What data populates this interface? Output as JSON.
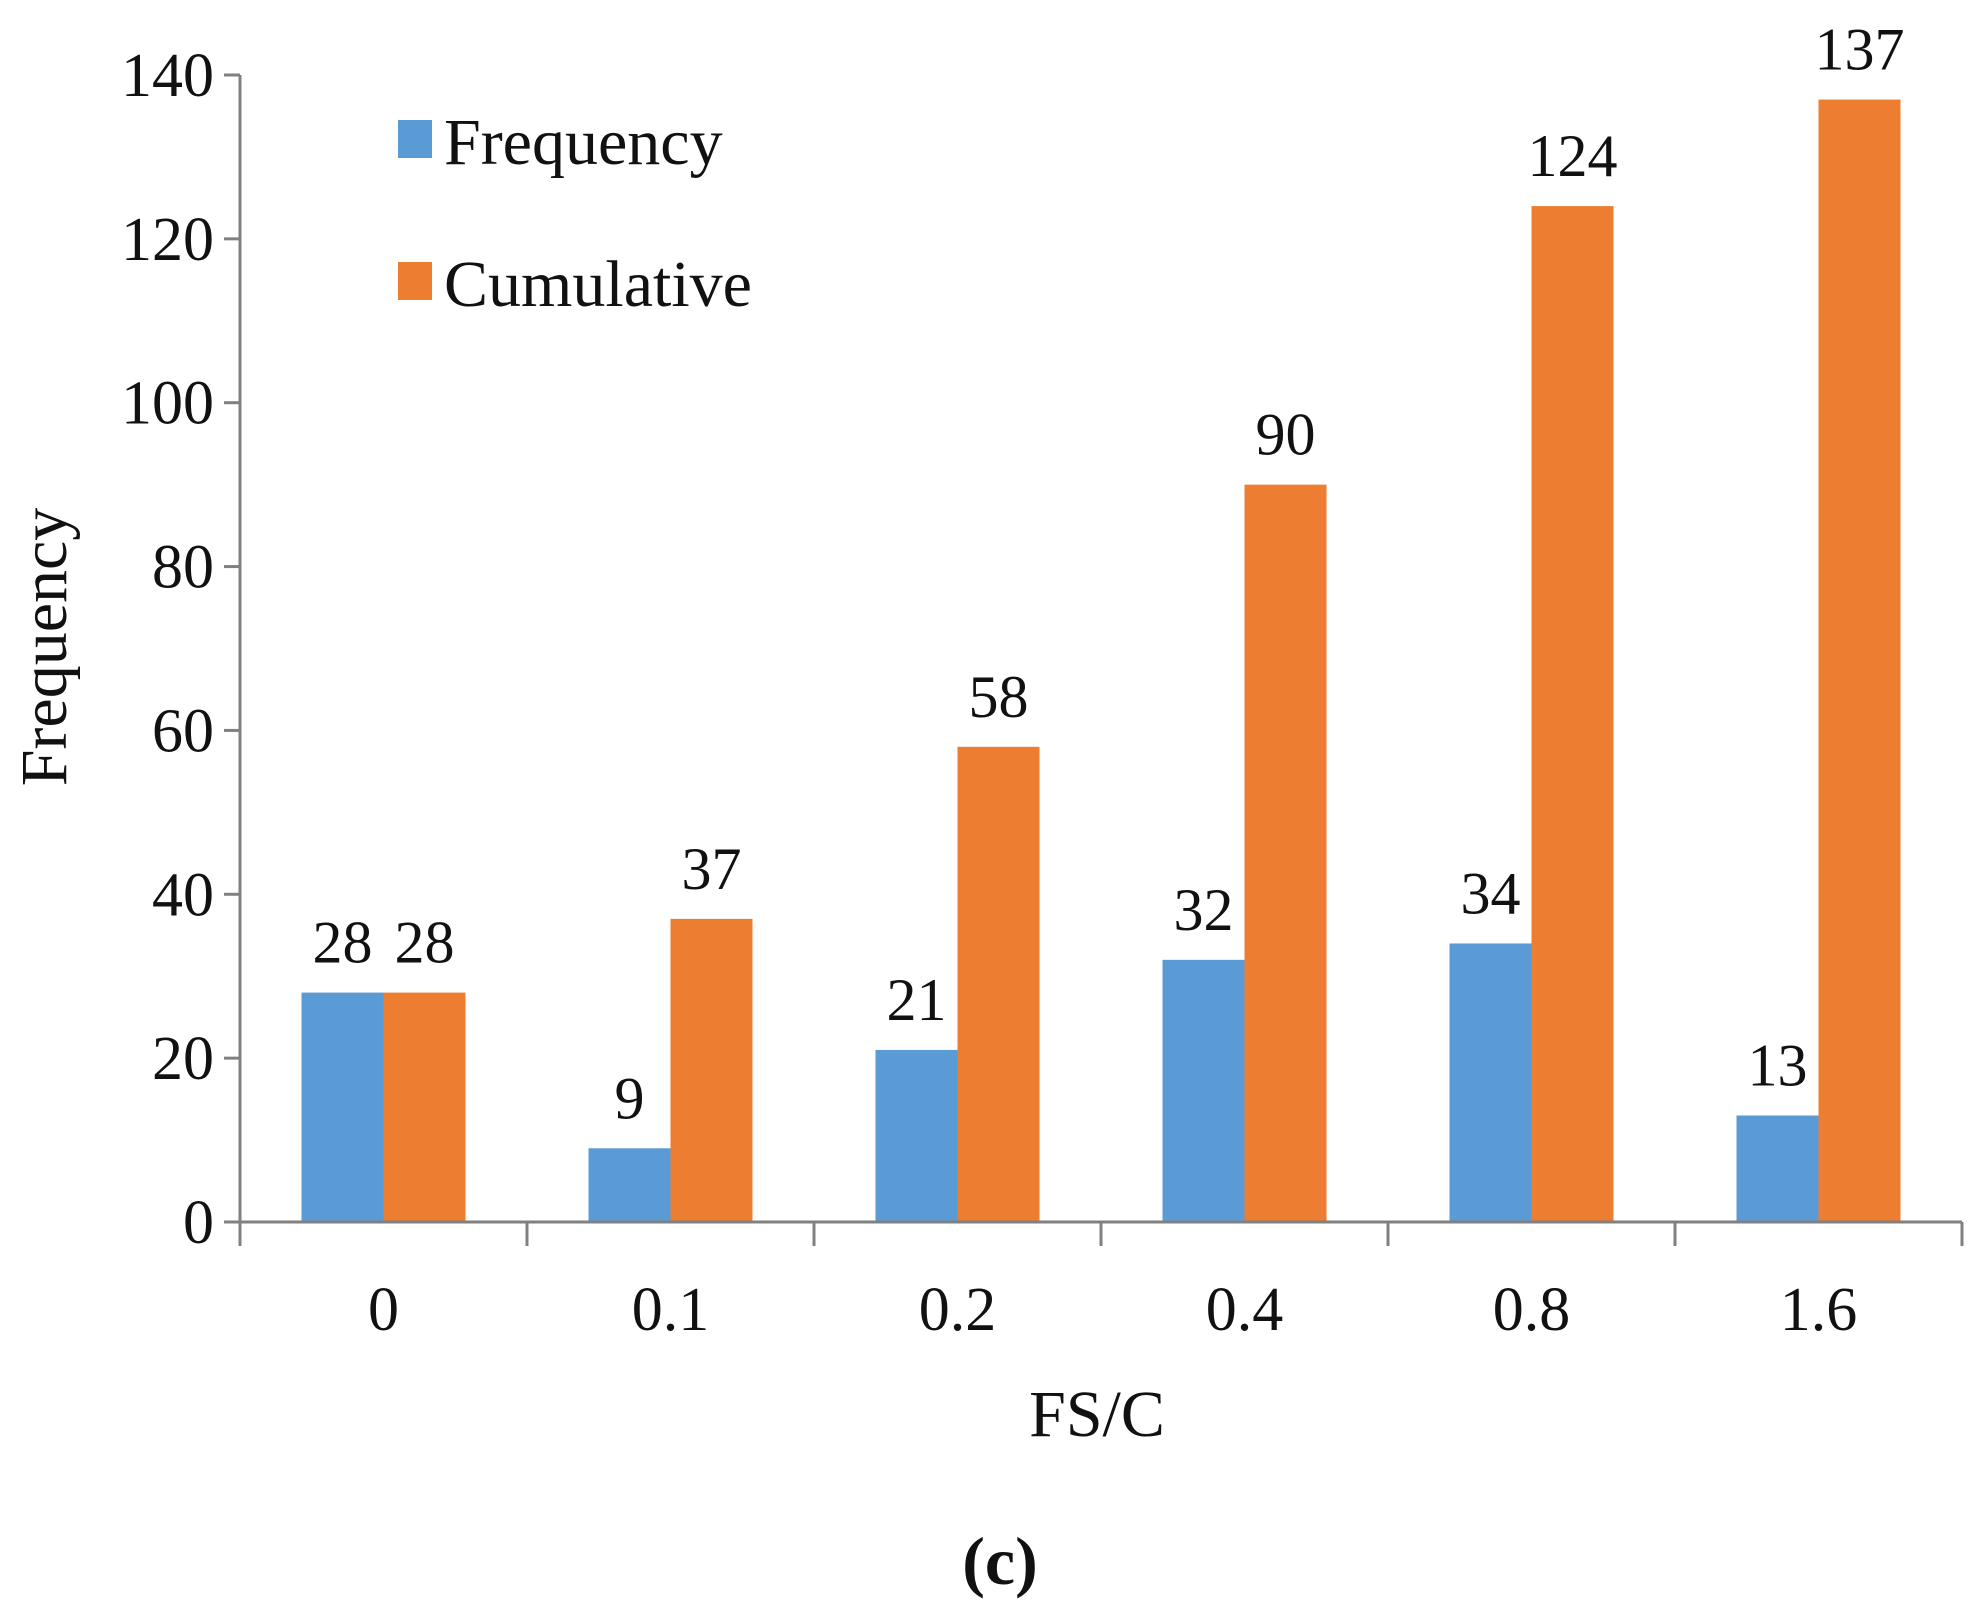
{
  "colors": {
    "frequency": "#5b9bd5",
    "cumulative": "#ed7d31",
    "axis": "#808080",
    "text": "#111111"
  },
  "chart_data": {
    "type": "bar",
    "title": "",
    "xlabel": "FS/C",
    "ylabel": "Frequency",
    "categories": [
      "0",
      "0.1",
      "0.2",
      "0.4",
      "0.8",
      "1.6"
    ],
    "ylim": [
      0,
      140
    ],
    "yticks": [
      0,
      20,
      40,
      60,
      80,
      100,
      120,
      140
    ],
    "grid": false,
    "legend_position": "top-left",
    "series": [
      {
        "name": "Frequency",
        "color": "#5b9bd5",
        "values": [
          28,
          9,
          21,
          32,
          34,
          13
        ]
      },
      {
        "name": "Cumulative",
        "color": "#ed7d31",
        "values": [
          28,
          37,
          58,
          90,
          124,
          137
        ]
      }
    ],
    "panel_label": "(c)"
  }
}
